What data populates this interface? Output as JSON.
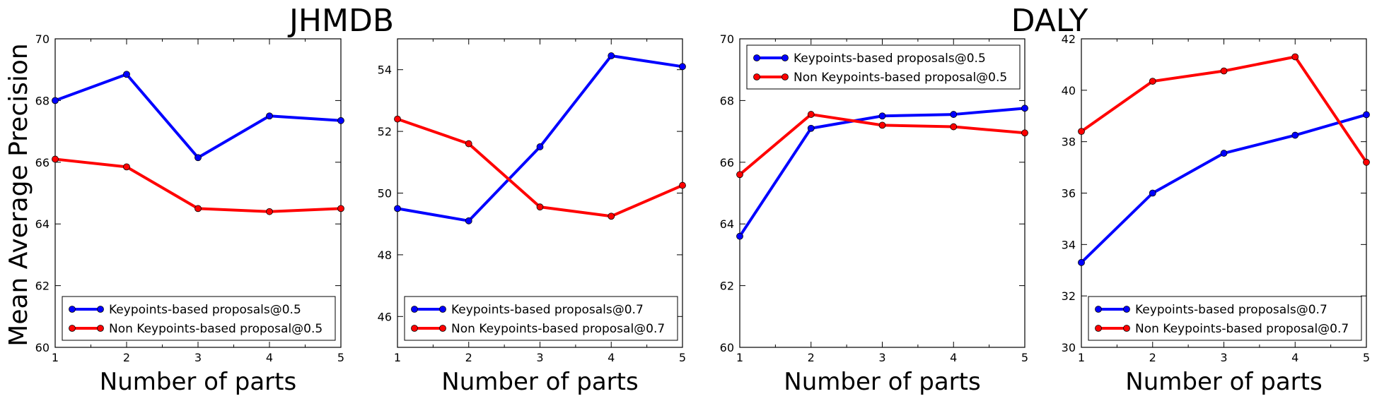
{
  "figure": {
    "group_titles": [
      "JHMDB",
      "DALY"
    ],
    "ylabel": "Mean Average Precision"
  },
  "chart_data": [
    {
      "type": "line",
      "group": "JHMDB",
      "xlabel": "Number of parts",
      "ylabel": "Mean Average Precision",
      "x": [
        1,
        2,
        3,
        4,
        5
      ],
      "xlim": [
        1,
        5
      ],
      "ylim": [
        60,
        70
      ],
      "yticks": [
        60,
        62,
        64,
        66,
        68,
        70
      ],
      "legend": "lower-left",
      "series": [
        {
          "name": "Keypoints-based proposals@0.5",
          "color": "#0000ff",
          "values": [
            68.0,
            68.85,
            66.15,
            67.5,
            67.35
          ]
        },
        {
          "name": "Non Keypoints-based proposal@0.5",
          "color": "#ff0000",
          "values": [
            66.1,
            65.85,
            64.5,
            64.4,
            64.5
          ]
        }
      ]
    },
    {
      "type": "line",
      "group": "JHMDB",
      "xlabel": "Number of parts",
      "x": [
        1,
        2,
        3,
        4,
        5
      ],
      "xlim": [
        1,
        5
      ],
      "ylim": [
        45,
        55
      ],
      "yticks": [
        46,
        48,
        50,
        52,
        54
      ],
      "legend": "lower-left",
      "series": [
        {
          "name": "Keypoints-based proposals@0.7",
          "color": "#0000ff",
          "values": [
            49.5,
            49.1,
            51.5,
            54.45,
            54.1
          ]
        },
        {
          "name": "Non Keypoints-based proposal@0.7",
          "color": "#ff0000",
          "values": [
            52.4,
            51.6,
            49.55,
            49.25,
            50.25
          ]
        }
      ]
    },
    {
      "type": "line",
      "group": "DALY",
      "xlabel": "Number of parts",
      "x": [
        1,
        2,
        3,
        4,
        5
      ],
      "xlim": [
        1,
        5
      ],
      "ylim": [
        60,
        70
      ],
      "yticks": [
        60,
        62,
        64,
        66,
        68,
        70
      ],
      "legend": "upper-left",
      "series": [
        {
          "name": "Keypoints-based proposals@0.5",
          "color": "#0000ff",
          "values": [
            63.6,
            67.1,
            67.5,
            67.55,
            67.75
          ]
        },
        {
          "name": "Non Keypoints-based proposal@0.5",
          "color": "#ff0000",
          "values": [
            65.6,
            67.55,
            67.2,
            67.15,
            66.95
          ]
        }
      ]
    },
    {
      "type": "line",
      "group": "DALY",
      "xlabel": "Number of parts",
      "x": [
        1,
        2,
        3,
        4,
        5
      ],
      "xlim": [
        1,
        5
      ],
      "ylim": [
        30,
        42
      ],
      "yticks": [
        30,
        32,
        34,
        36,
        38,
        40,
        42
      ],
      "legend": "lower-left",
      "series": [
        {
          "name": "Keypoints-based proposals@0.7",
          "color": "#0000ff",
          "values": [
            33.3,
            36.0,
            37.55,
            38.25,
            39.05
          ]
        },
        {
          "name": "Non Keypoints-based proposal@0.7",
          "color": "#ff0000",
          "values": [
            38.4,
            40.35,
            40.75,
            41.3,
            37.2
          ]
        }
      ]
    }
  ]
}
